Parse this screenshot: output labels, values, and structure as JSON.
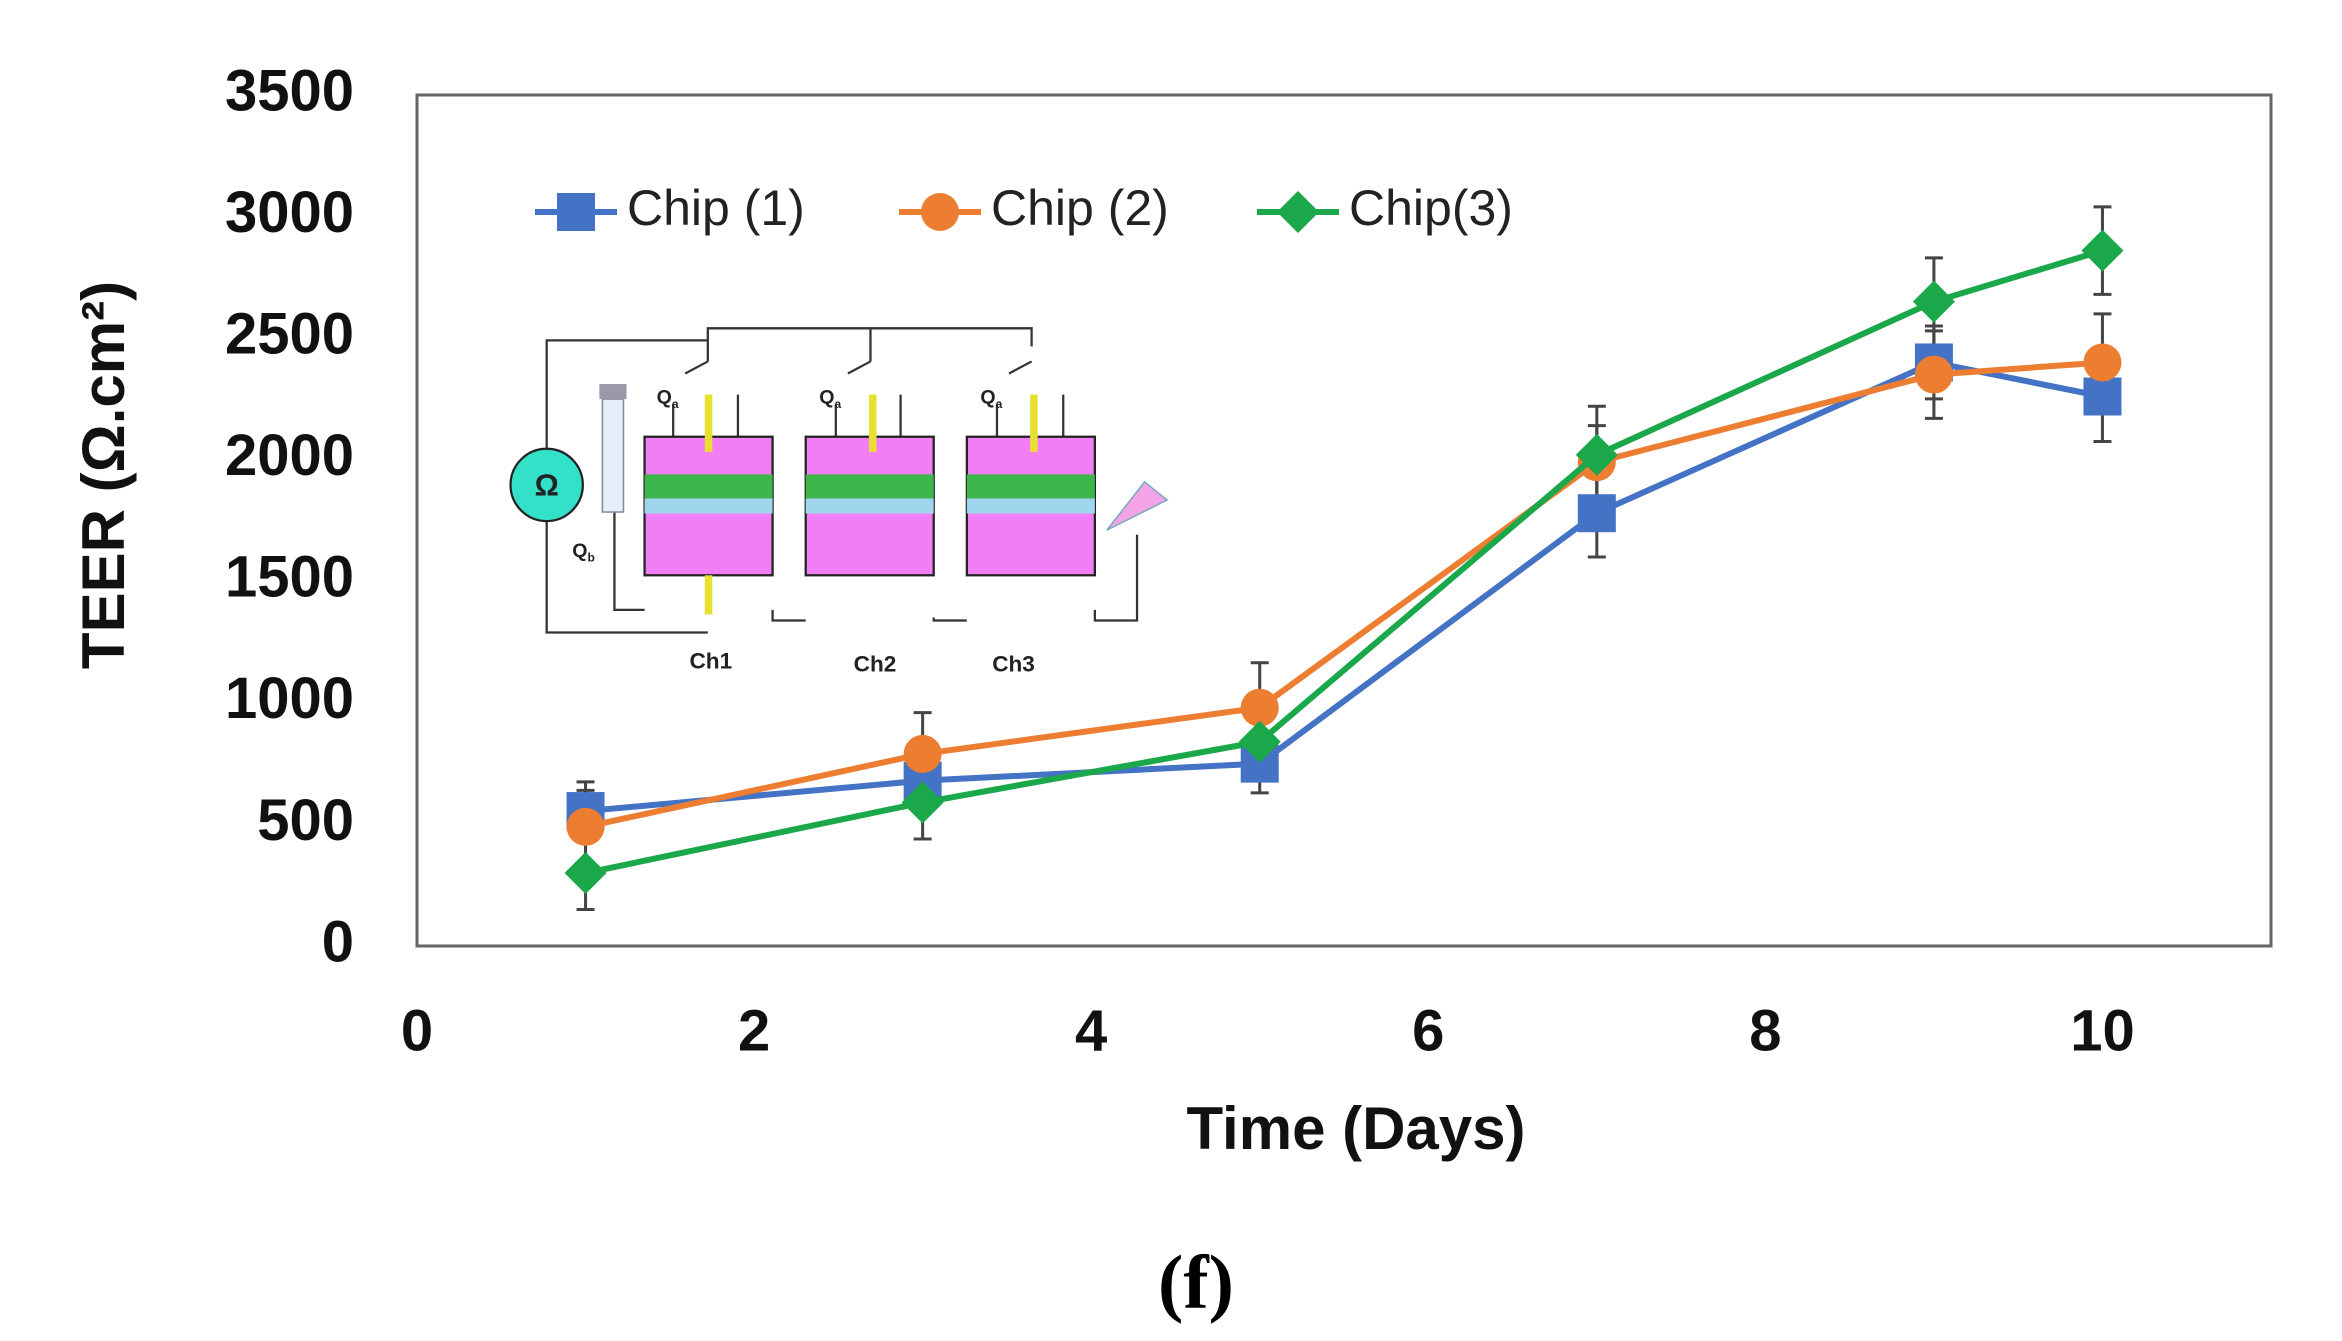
{
  "chart_data": {
    "type": "line",
    "x_label": "Time (Days)",
    "y_label": "TEER (Ω.cm²)",
    "caption": "(f)",
    "x": [
      1,
      3,
      5,
      7,
      9,
      10
    ],
    "xlim": [
      0,
      11
    ],
    "xticks": [
      0,
      2,
      4,
      6,
      8,
      10
    ],
    "ylim": [
      0,
      3500
    ],
    "yticks": [
      0,
      500,
      1000,
      1500,
      2000,
      2500,
      3000,
      3500
    ],
    "legend": "top-left",
    "series": [
      {
        "name": "Chip (1)",
        "color": "#4472c4",
        "marker": "square",
        "values": [
          555,
          680,
          750,
          1780,
          2400,
          2260
        ],
        "errors": [
          120,
          100,
          120,
          180,
          150,
          185
        ]
      },
      {
        "name": "Chip (2)",
        "color": "#ed7d31",
        "marker": "circle",
        "values": [
          490,
          790,
          980,
          1990,
          2350,
          2400
        ],
        "errors": [
          150,
          170,
          185,
          150,
          180,
          200
        ]
      },
      {
        "name": "Chip(3)",
        "color": "#1aa84a",
        "marker": "diamond",
        "values": [
          300,
          590,
          840,
          2020,
          2650,
          2860
        ],
        "errors": [
          150,
          150,
          120,
          200,
          180,
          180
        ]
      }
    ],
    "inset": {
      "meter": "Ω",
      "inlet_a": [
        {
          "main": "Q",
          "sub": "a"
        },
        {
          "main": "Q",
          "sub": "a"
        },
        {
          "main": "Q",
          "sub": "a"
        }
      ],
      "inlet_b": {
        "main": "Q",
        "sub": "b"
      },
      "channels": [
        "Ch1",
        "Ch2",
        "Ch3"
      ]
    }
  }
}
